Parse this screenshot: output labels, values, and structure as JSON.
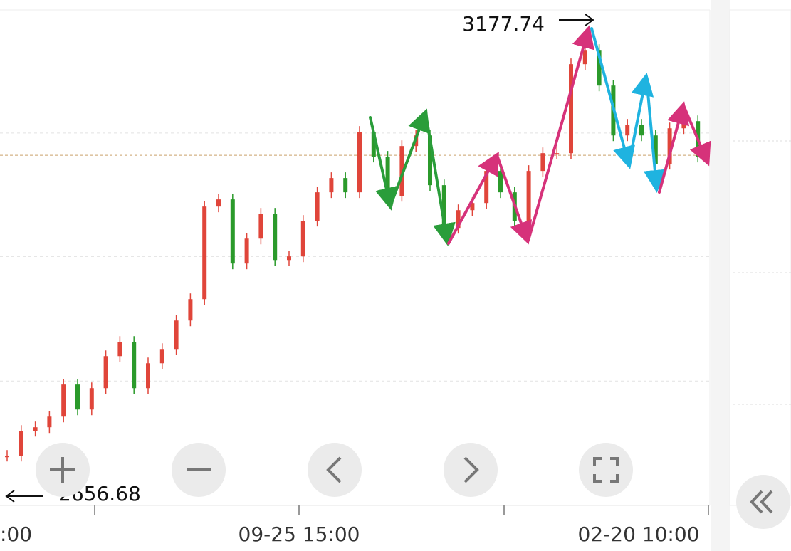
{
  "chart_data": {
    "type": "candlestick",
    "values": [
      2679.9,
      2708.9,
      2713.1,
      2725.5,
      2762.9,
      2733.8,
      2758.7,
      2796.0,
      2812.6,
      2758.7,
      2787.7,
      2804.3,
      2837.5,
      2862.4,
      2970.3,
      2978.6,
      2903.9,
      2932.9,
      2962.0,
      2908.0,
      2912.2,
      2953.7,
      2986.9,
      3003.5,
      2986.9,
      3057.4,
      3028.4,
      2982.7,
      3040.8,
      3053.2,
      2995.2,
      2945.4,
      2966.1,
      2974.4,
      3011.8,
      2986.9,
      2953.7,
      3011.8,
      3032.5,
      3032.5,
      3136.2,
      3152.8,
      3111.3,
      3053.2,
      3065.7,
      3053.2,
      3020.1,
      3061.5,
      3069.8,
      3028.4
    ],
    "up_color": "#e0453a",
    "down_color": "#2b9a2b",
    "ylim": [
      2622,
      3211
    ],
    "grid_lines": [
      2767,
      2912,
      3056
    ],
    "last_price": 3030,
    "high_label": "3177.74",
    "high": 3177.74,
    "low_label": "2656.68",
    "low": 2656.68,
    "xtick_labels": [
      ":00",
      "09-25 15:00",
      "02-20 10:00"
    ]
  }
}
